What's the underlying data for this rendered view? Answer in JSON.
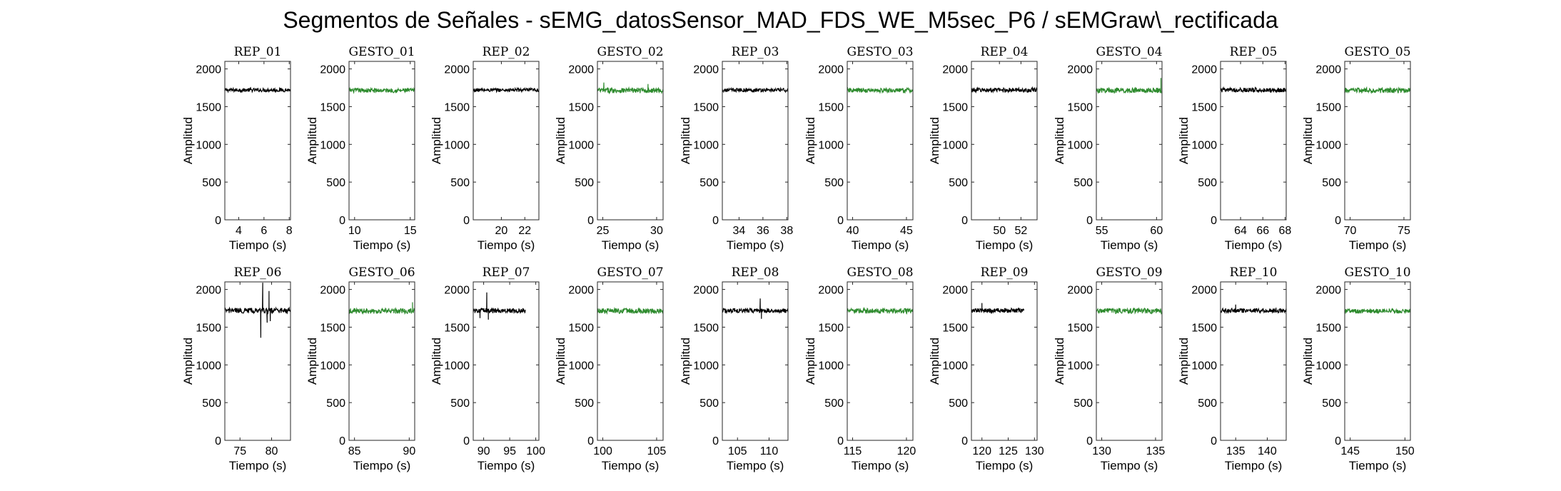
{
  "figure": {
    "title": "Segmentos de Señales - sEMG_datosSensor_MAD_FDS_WE_M5sec_P6 / sEMGraw\\_rectificada"
  },
  "colors": {
    "rep": "#000000",
    "gesto": "#2e8b2e"
  },
  "chart_data": [
    {
      "type": "line",
      "title": "REP_01",
      "xlabel": "Tiempo (s)",
      "ylabel": "Amplitud",
      "xlim": [
        2.9,
        8.1
      ],
      "ylim": [
        0,
        2100
      ],
      "xticks": [
        4,
        6,
        8
      ],
      "yticks": [
        0,
        500,
        1000,
        1500,
        2000
      ],
      "color": "#000000",
      "x_range": [
        2.9,
        8.1
      ],
      "mean": 1720,
      "noise": 25,
      "spikes": []
    },
    {
      "type": "line",
      "title": "GESTO_01",
      "xlabel": "Tiempo (s)",
      "ylabel": "Amplitud",
      "xlim": [
        9.5,
        15.4
      ],
      "ylim": [
        0,
        2100
      ],
      "xticks": [
        10,
        15
      ],
      "yticks": [
        0,
        500,
        1000,
        1500,
        2000
      ],
      "color": "#2e8b2e",
      "x_range": [
        9.5,
        15.4
      ],
      "mean": 1715,
      "noise": 30,
      "spikes": []
    },
    {
      "type": "line",
      "title": "REP_02",
      "xlabel": "Tiempo (s)",
      "ylabel": "Amplitud",
      "xlim": [
        17.6,
        23.2
      ],
      "ylim": [
        0,
        2100
      ],
      "xticks": [
        20,
        22
      ],
      "yticks": [
        0,
        500,
        1000,
        1500,
        2000
      ],
      "color": "#000000",
      "x_range": [
        17.6,
        23.2
      ],
      "mean": 1720,
      "noise": 25,
      "spikes": []
    },
    {
      "type": "line",
      "title": "GESTO_02",
      "xlabel": "Tiempo (s)",
      "ylabel": "Amplitud",
      "xlim": [
        24.5,
        30.6
      ],
      "ylim": [
        0,
        2100
      ],
      "xticks": [
        25,
        30
      ],
      "yticks": [
        0,
        500,
        1000,
        1500,
        2000
      ],
      "color": "#2e8b2e",
      "x_range": [
        24.5,
        30.6
      ],
      "mean": 1715,
      "noise": 35,
      "spikes": [
        [
          25.1,
          1820
        ],
        [
          29.2,
          1800
        ]
      ]
    },
    {
      "type": "line",
      "title": "REP_03",
      "xlabel": "Tiempo (s)",
      "ylabel": "Amplitud",
      "xlim": [
        32.6,
        38.1
      ],
      "ylim": [
        0,
        2100
      ],
      "xticks": [
        34,
        36,
        38
      ],
      "yticks": [
        0,
        500,
        1000,
        1500,
        2000
      ],
      "color": "#000000",
      "x_range": [
        32.6,
        38.1
      ],
      "mean": 1720,
      "noise": 25,
      "spikes": []
    },
    {
      "type": "line",
      "title": "GESTO_03",
      "xlabel": "Tiempo (s)",
      "ylabel": "Amplitud",
      "xlim": [
        39.5,
        45.6
      ],
      "ylim": [
        0,
        2100
      ],
      "xticks": [
        40,
        45
      ],
      "yticks": [
        0,
        500,
        1000,
        1500,
        2000
      ],
      "color": "#2e8b2e",
      "x_range": [
        39.5,
        45.6
      ],
      "mean": 1715,
      "noise": 30,
      "spikes": []
    },
    {
      "type": "line",
      "title": "REP_04",
      "xlabel": "Tiempo (s)",
      "ylabel": "Amplitud",
      "xlim": [
        47.4,
        53.5
      ],
      "ylim": [
        0,
        2100
      ],
      "xticks": [
        50,
        52
      ],
      "yticks": [
        0,
        500,
        1000,
        1500,
        2000
      ],
      "color": "#000000",
      "x_range": [
        47.4,
        53.5
      ],
      "mean": 1720,
      "noise": 30,
      "spikes": []
    },
    {
      "type": "line",
      "title": "GESTO_04",
      "xlabel": "Tiempo (s)",
      "ylabel": "Amplitud",
      "xlim": [
        54.5,
        60.5
      ],
      "ylim": [
        0,
        2100
      ],
      "xticks": [
        55,
        60
      ],
      "yticks": [
        0,
        500,
        1000,
        1500,
        2000
      ],
      "color": "#2e8b2e",
      "x_range": [
        54.5,
        60.5
      ],
      "mean": 1715,
      "noise": 35,
      "spikes": [
        [
          60.4,
          1880
        ]
      ]
    },
    {
      "type": "line",
      "title": "REP_05",
      "xlabel": "Tiempo (s)",
      "ylabel": "Amplitud",
      "xlim": [
        62.2,
        68.1
      ],
      "ylim": [
        0,
        2100
      ],
      "xticks": [
        64,
        66,
        68
      ],
      "yticks": [
        0,
        500,
        1000,
        1500,
        2000
      ],
      "color": "#000000",
      "x_range": [
        62.2,
        68.1
      ],
      "mean": 1720,
      "noise": 30,
      "spikes": []
    },
    {
      "type": "line",
      "title": "GESTO_05",
      "xlabel": "Tiempo (s)",
      "ylabel": "Amplitud",
      "xlim": [
        69.5,
        75.6
      ],
      "ylim": [
        0,
        2100
      ],
      "xticks": [
        70,
        75
      ],
      "yticks": [
        0,
        500,
        1000,
        1500,
        2000
      ],
      "color": "#2e8b2e",
      "x_range": [
        69.5,
        75.6
      ],
      "mean": 1715,
      "noise": 35,
      "spikes": []
    },
    {
      "type": "line",
      "title": "REP_06",
      "xlabel": "Tiempo (s)",
      "ylabel": "Amplitud",
      "xlim": [
        72.6,
        83
      ],
      "ylim": [
        0,
        2100
      ],
      "xticks": [
        75,
        80
      ],
      "yticks": [
        0,
        500,
        1000,
        1500,
        2000
      ],
      "color": "#000000",
      "x_range": [
        72.6,
        83
      ],
      "mean": 1720,
      "noise": 35,
      "spikes": [
        [
          78.3,
          1360
        ],
        [
          78.6,
          2090
        ],
        [
          79.3,
          1560
        ],
        [
          79.6,
          1980
        ],
        [
          79.8,
          1580
        ]
      ]
    },
    {
      "type": "line",
      "title": "GESTO_06",
      "xlabel": "Tiempo (s)",
      "ylabel": "Amplitud",
      "xlim": [
        84.5,
        90.5
      ],
      "ylim": [
        0,
        2100
      ],
      "xticks": [
        85,
        90
      ],
      "yticks": [
        0,
        500,
        1000,
        1500,
        2000
      ],
      "color": "#2e8b2e",
      "x_range": [
        84.5,
        90.5
      ],
      "mean": 1715,
      "noise": 35,
      "spikes": [
        [
          90.3,
          1830
        ]
      ]
    },
    {
      "type": "line",
      "title": "REP_07",
      "xlabel": "Tiempo (s)",
      "ylabel": "Amplitud",
      "xlim": [
        88,
        100.6
      ],
      "ylim": [
        0,
        2100
      ],
      "xticks": [
        90,
        95,
        100
      ],
      "yticks": [
        0,
        500,
        1000,
        1500,
        2000
      ],
      "color": "#000000",
      "x_range": [
        88,
        98
      ],
      "mean": 1720,
      "noise": 30,
      "spikes": [
        [
          89.3,
          1620
        ],
        [
          90.6,
          1960
        ],
        [
          90.9,
          1600
        ]
      ]
    },
    {
      "type": "line",
      "title": "GESTO_07",
      "xlabel": "Tiempo (s)",
      "ylabel": "Amplitud",
      "xlim": [
        99.5,
        105.6
      ],
      "ylim": [
        0,
        2100
      ],
      "xticks": [
        100,
        105
      ],
      "yticks": [
        0,
        500,
        1000,
        1500,
        2000
      ],
      "color": "#2e8b2e",
      "x_range": [
        99.5,
        105.6
      ],
      "mean": 1715,
      "noise": 35,
      "spikes": []
    },
    {
      "type": "line",
      "title": "REP_08",
      "xlabel": "Tiempo (s)",
      "ylabel": "Amplitud",
      "xlim": [
        102.6,
        113
      ],
      "ylim": [
        0,
        2100
      ],
      "xticks": [
        105,
        110
      ],
      "yticks": [
        0,
        500,
        1000,
        1500,
        2000
      ],
      "color": "#000000",
      "x_range": [
        102.6,
        113
      ],
      "mean": 1720,
      "noise": 30,
      "spikes": [
        [
          108.6,
          1880
        ],
        [
          108.8,
          1610
        ]
      ]
    },
    {
      "type": "line",
      "title": "GESTO_08",
      "xlabel": "Tiempo (s)",
      "ylabel": "Amplitud",
      "xlim": [
        114.5,
        120.6
      ],
      "ylim": [
        0,
        2100
      ],
      "xticks": [
        115,
        120
      ],
      "yticks": [
        0,
        500,
        1000,
        1500,
        2000
      ],
      "color": "#2e8b2e",
      "x_range": [
        114.5,
        120.6
      ],
      "mean": 1715,
      "noise": 35,
      "spikes": []
    },
    {
      "type": "line",
      "title": "REP_09",
      "xlabel": "Tiempo (s)",
      "ylabel": "Amplitud",
      "xlim": [
        118,
        130.5
      ],
      "ylim": [
        0,
        2100
      ],
      "xticks": [
        120,
        125,
        130
      ],
      "yticks": [
        0,
        500,
        1000,
        1500,
        2000
      ],
      "color": "#000000",
      "x_range": [
        118,
        128
      ],
      "mean": 1720,
      "noise": 30,
      "spikes": [
        [
          120,
          1820
        ]
      ]
    },
    {
      "type": "line",
      "title": "GESTO_09",
      "xlabel": "Tiempo (s)",
      "ylabel": "Amplitud",
      "xlim": [
        129.5,
        135.6
      ],
      "ylim": [
        0,
        2100
      ],
      "xticks": [
        130,
        135
      ],
      "yticks": [
        0,
        500,
        1000,
        1500,
        2000
      ],
      "color": "#2e8b2e",
      "x_range": [
        129.5,
        135.6
      ],
      "mean": 1715,
      "noise": 35,
      "spikes": []
    },
    {
      "type": "line",
      "title": "REP_10",
      "xlabel": "Tiempo (s)",
      "ylabel": "Amplitud",
      "xlim": [
        132.6,
        143
      ],
      "ylim": [
        0,
        2100
      ],
      "xticks": [
        135,
        140
      ],
      "yticks": [
        0,
        500,
        1000,
        1500,
        2000
      ],
      "color": "#000000",
      "x_range": [
        132.6,
        143
      ],
      "mean": 1720,
      "noise": 30,
      "spikes": [
        [
          135,
          1800
        ]
      ]
    },
    {
      "type": "line",
      "title": "GESTO_10",
      "xlabel": "Tiempo (s)",
      "ylabel": "Amplitud",
      "xlim": [
        144.5,
        150.5
      ],
      "ylim": [
        0,
        2100
      ],
      "xticks": [
        145,
        150
      ],
      "yticks": [
        0,
        500,
        1000,
        1500,
        2000
      ],
      "color": "#2e8b2e",
      "x_range": [
        144.5,
        150.5
      ],
      "mean": 1715,
      "noise": 30,
      "spikes": []
    }
  ]
}
